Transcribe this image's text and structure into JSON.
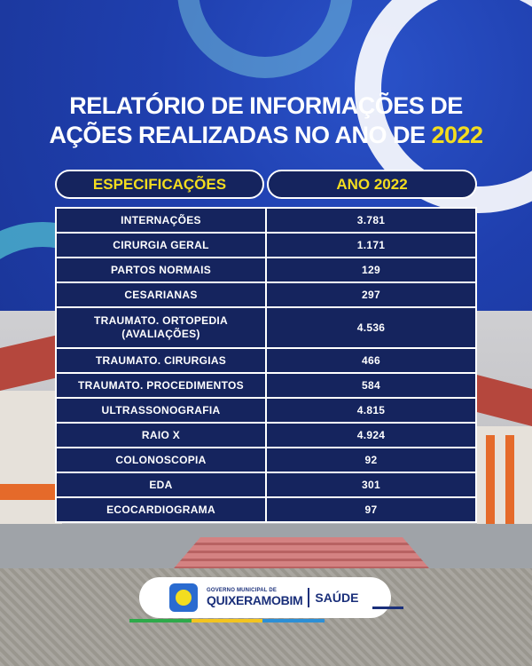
{
  "title": {
    "line1": "RELATÓRIO DE INFORMAÇÕES DE",
    "line2_prefix": "AÇÕES REALIZADAS NO ANO DE ",
    "line2_year": "2022"
  },
  "table": {
    "headers": [
      "ESPECIFICAÇÕES",
      "ANO 2022"
    ],
    "rows": [
      {
        "spec": "INTERNAÇÕES",
        "value": "3.781"
      },
      {
        "spec": "CIRURGIA GERAL",
        "value": "1.171"
      },
      {
        "spec": "PARTOS NORMAIS",
        "value": "129"
      },
      {
        "spec": "CESARIANAS",
        "value": "297"
      },
      {
        "spec": "TRAUMATO. ORTOPEDIA\n(AVALIAÇÕES)",
        "value": "4.536"
      },
      {
        "spec": "TRAUMATO. CIRURGIAS",
        "value": "466"
      },
      {
        "spec": "TRAUMATO. PROCEDIMENTOS",
        "value": "584"
      },
      {
        "spec": "ULTRASSONOGRAFIA",
        "value": "4.815"
      },
      {
        "spec": "RAIO X",
        "value": "4.924"
      },
      {
        "spec": "COLONOSCOPIA",
        "value": "92"
      },
      {
        "spec": "EDA",
        "value": "301"
      },
      {
        "spec": "ECOCARDIOGRAMA",
        "value": "97"
      }
    ]
  },
  "footer": {
    "gov_small": "GOVERNO MUNICIPAL DE",
    "city": "QUIXERAMOBIM",
    "dept": "SAÚDE",
    "crest_icon": "municipal-crest-icon"
  },
  "colors": {
    "navy": "#15245e",
    "accent_yellow": "#f3dd1f",
    "background_blue": "#1f3fae"
  }
}
